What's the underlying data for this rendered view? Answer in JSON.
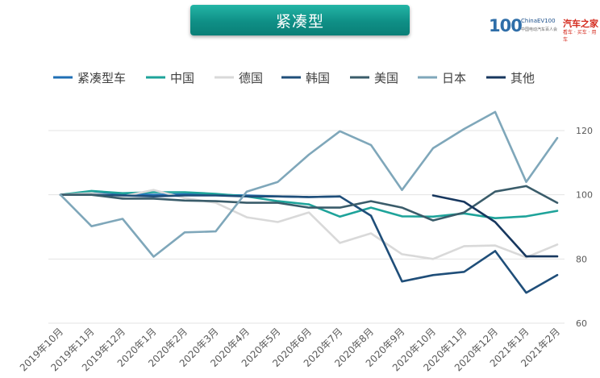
{
  "header": {
    "title": "紧凑型",
    "logo_left": "100",
    "logo_left_text": "ChinaEV100",
    "logo_left_sub": "中国电动汽车百人会",
    "logo_right": "汽车之家",
    "logo_right_sub": "看车 · 买车 · 用车"
  },
  "chart_data": {
    "type": "line",
    "title": "",
    "xlabel": "",
    "ylabel": "",
    "ylim": [
      60,
      130
    ],
    "yticks": [
      60,
      80,
      100,
      120
    ],
    "y_axis_position": "right",
    "grid": true,
    "legend_position": "top",
    "x": [
      "2019年10月",
      "2019年11月",
      "2019年12月",
      "2020年1月",
      "2020年2月",
      "2020年3月",
      "2020年4月",
      "2020年5月",
      "2020年6月",
      "2020年7月",
      "2020年8月",
      "2020年9月",
      "2020年10月",
      "2020年11月",
      "2020年12月",
      "2021年1月",
      "2021年2月"
    ],
    "series": [
      {
        "name": "紧凑型车",
        "color": "#1f6fb5",
        "values": [
          100,
          100.5,
          100.3,
          100,
          100.2,
          100,
          99.8,
          99.5,
          99.3,
          99.5,
          null,
          null,
          null,
          null,
          null,
          null,
          null
        ]
      },
      {
        "name": "中国",
        "color": "#1ea39a",
        "values": [
          100,
          101.2,
          100.5,
          100.8,
          100.8,
          100.3,
          99.5,
          98,
          97,
          93.2,
          96,
          93.3,
          93.2,
          94.2,
          92.7,
          93.3,
          95
        ]
      },
      {
        "name": "德国",
        "color": "#d9d9d9",
        "values": [
          100,
          100.5,
          99.5,
          101.5,
          99,
          97.5,
          93,
          91.5,
          94.5,
          85,
          88,
          81.5,
          80,
          84,
          84.2,
          80.5,
          84.5
        ]
      },
      {
        "name": "韩国",
        "color": "#1f4e79",
        "values": [
          100,
          100,
          99.8,
          99.5,
          99.8,
          99.8,
          99.5,
          99.5,
          99.3,
          99.5,
          93.5,
          73,
          75,
          76,
          82.5,
          69.5,
          75
        ]
      },
      {
        "name": "美国",
        "color": "#3a5c6a",
        "values": [
          100,
          100,
          98.8,
          98.8,
          98.2,
          98,
          97.5,
          97.5,
          96,
          96,
          98,
          96,
          92,
          94.5,
          101,
          102.7,
          97.5
        ]
      },
      {
        "name": "日本",
        "color": "#7fa7ba",
        "values": [
          100,
          90.2,
          92.5,
          80.7,
          88.3,
          88.6,
          101,
          104,
          112.5,
          119.8,
          115.5,
          101.5,
          114.5,
          120.5,
          125.8,
          104,
          117.7
        ]
      },
      {
        "name": "其他",
        "color": "#17375e",
        "values": [
          null,
          null,
          null,
          null,
          null,
          null,
          null,
          null,
          null,
          null,
          null,
          null,
          99.8,
          97.8,
          91.5,
          80.8,
          80.8
        ]
      }
    ]
  }
}
